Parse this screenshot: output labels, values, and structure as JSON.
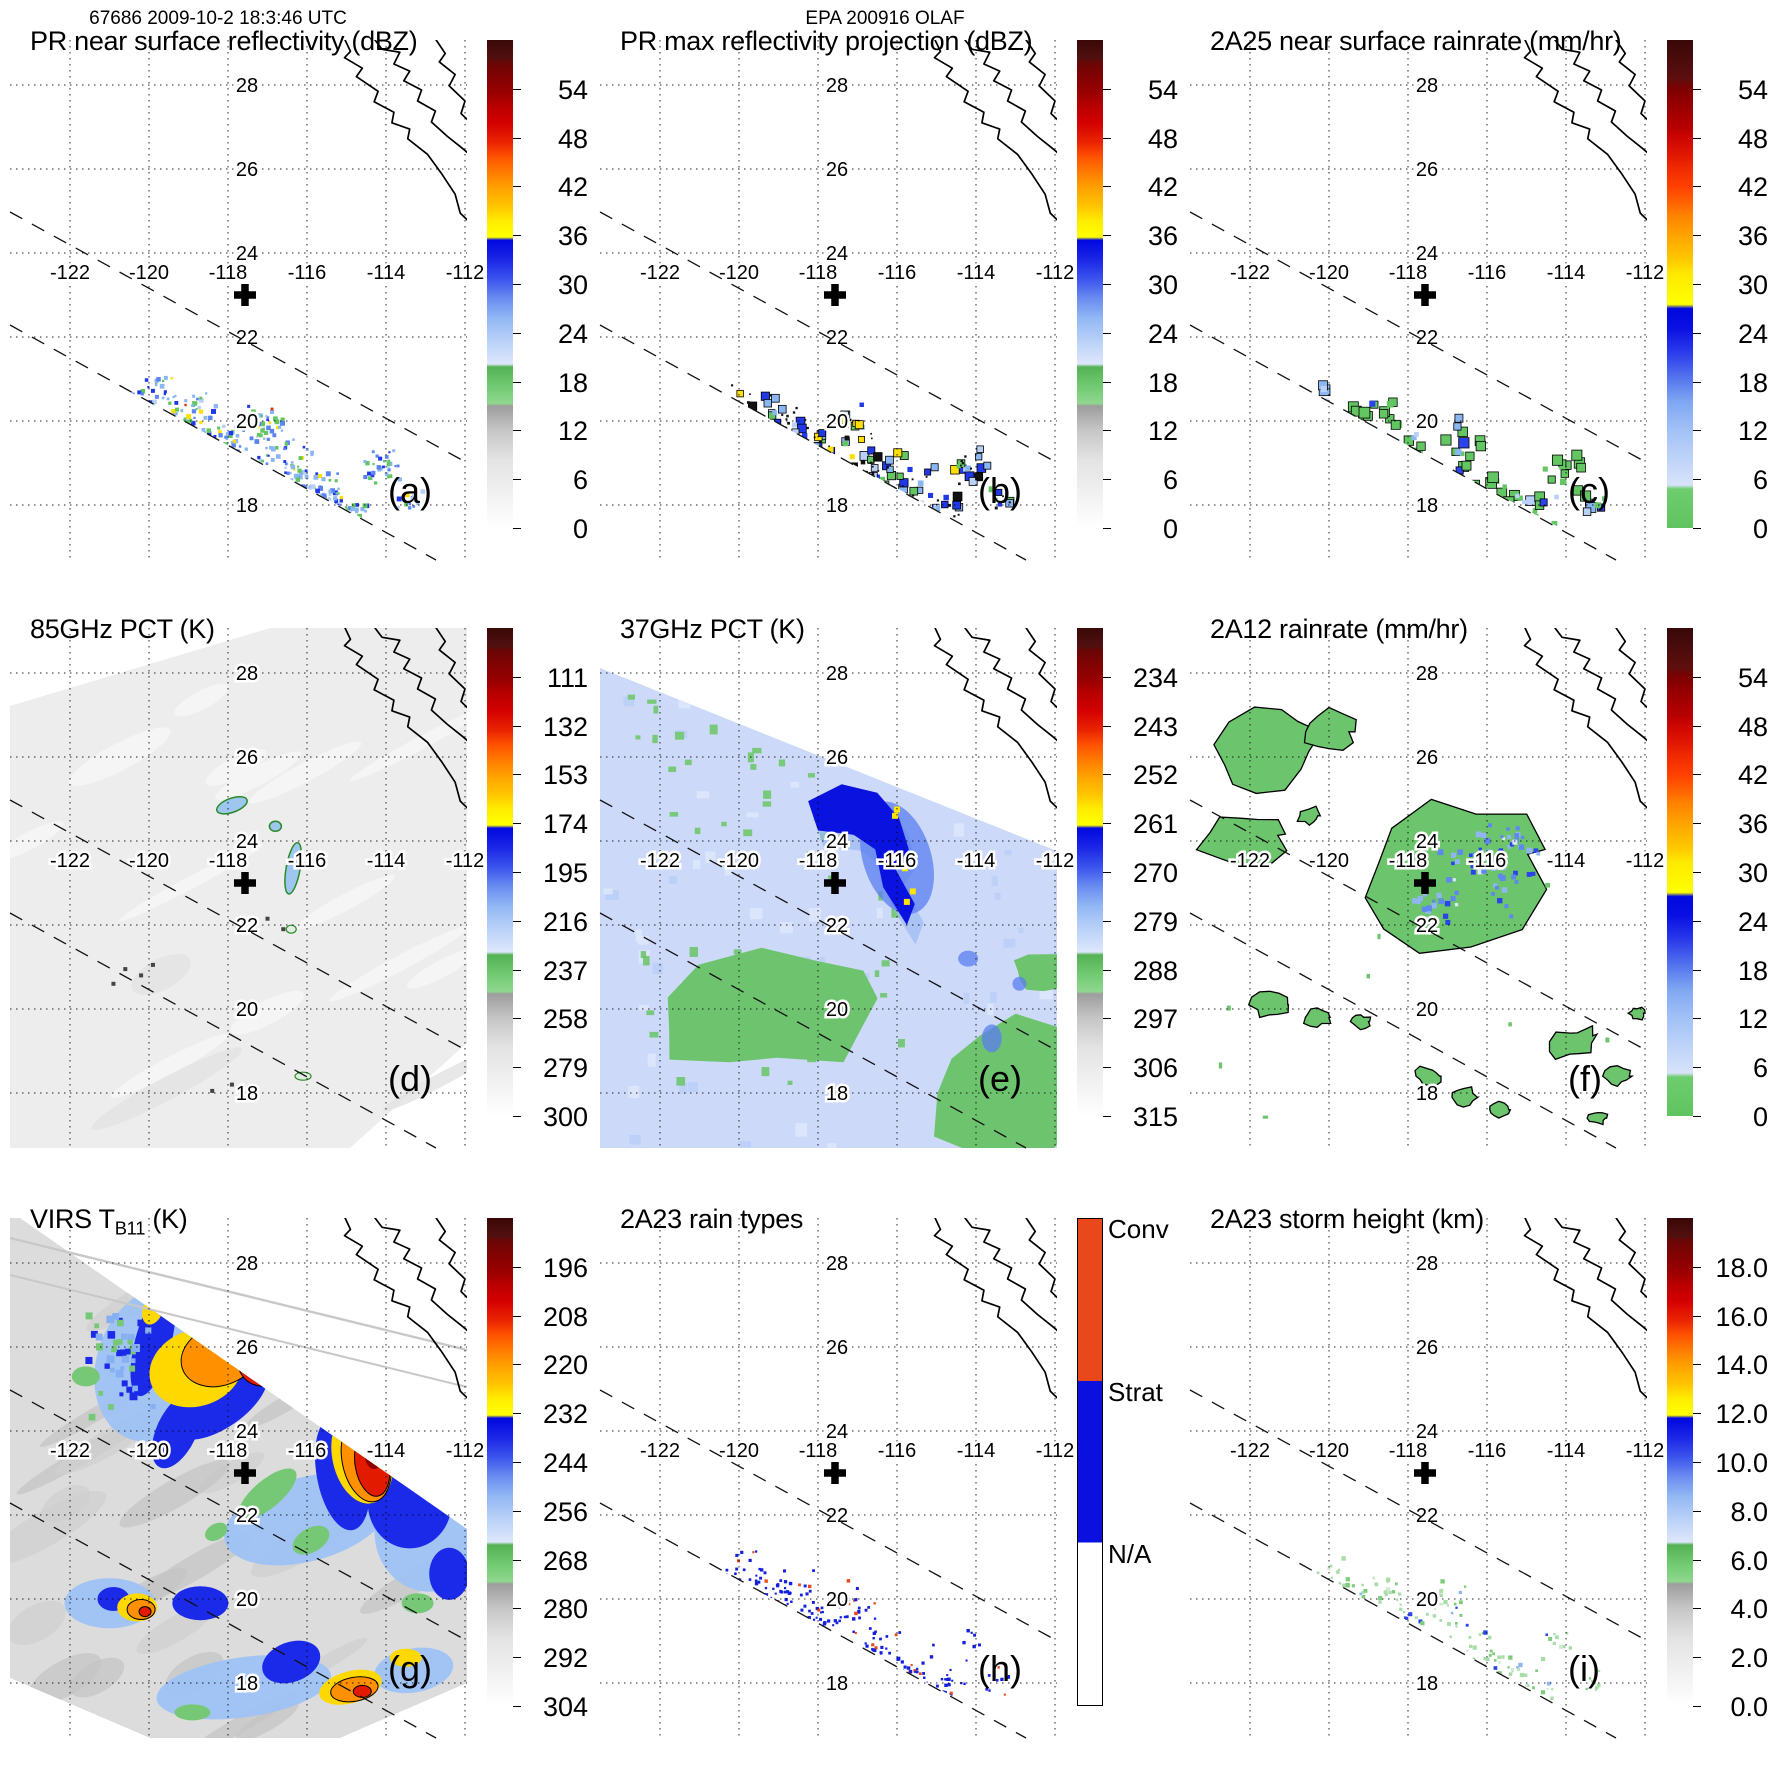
{
  "header": {
    "left": "67686 2009-10-2 18:3:46 UTC",
    "center": "EPA 200916 OLAF"
  },
  "geo": {
    "lon_ticks": [
      -122,
      -120,
      -118,
      -116,
      -114,
      -112
    ],
    "lon_labels": [
      "-122",
      "-120",
      "-118",
      "-116",
      "-114",
      "-112"
    ],
    "lat_ticks": [
      28,
      26,
      24,
      22,
      20,
      18
    ],
    "lat_labels": [
      "28",
      "26",
      "24",
      "22",
      "20",
      "18"
    ],
    "lon_range": [
      -123.5,
      -112.0
    ],
    "lat_range": [
      16.7,
      29.1
    ],
    "storm_marker": {
      "lon": -117.57,
      "lat": 23.0
    },
    "swath_edges_dashed": true,
    "coastline": "Baja California and mainland Mexico"
  },
  "colors": {
    "conv": "#e8481c",
    "strat": "#0a10dd",
    "na": "#ffffff",
    "standard_stops": [
      [
        0,
        "#ffffff"
      ],
      [
        7,
        "#f1f1f1"
      ],
      [
        14,
        "#e3e3e3"
      ],
      [
        20,
        "#c6c6c6"
      ],
      [
        25,
        "#9d9d9d"
      ],
      [
        25.5,
        "#8fd78f"
      ],
      [
        29,
        "#72ca72"
      ],
      [
        33,
        "#54b254"
      ],
      [
        33.6,
        "#dde7fb"
      ],
      [
        38,
        "#bcd3f8"
      ],
      [
        43,
        "#92b7f4"
      ],
      [
        47,
        "#6a8df1"
      ],
      [
        51,
        "#3b54ed"
      ],
      [
        55,
        "#1b26e6"
      ],
      [
        59,
        "#0008e0"
      ],
      [
        59.6,
        "#ffff00"
      ],
      [
        63,
        "#ffec00"
      ],
      [
        66,
        "#ffc400"
      ],
      [
        70,
        "#ff9e00"
      ],
      [
        73,
        "#ff7a00"
      ],
      [
        76,
        "#ff5300"
      ],
      [
        79,
        "#ea2400"
      ],
      [
        83,
        "#d40000"
      ],
      [
        87,
        "#b40000"
      ],
      [
        89,
        "#9a0000"
      ],
      [
        93,
        "#7e0303"
      ],
      [
        95.5,
        "#680606"
      ],
      [
        96.2,
        "#521010"
      ],
      [
        100,
        "#3a0808"
      ]
    ],
    "rain_stops": [
      [
        0,
        "#5fc45f"
      ],
      [
        8,
        "#6ecd6e"
      ],
      [
        8.8,
        "#d7e3fa"
      ],
      [
        14,
        "#c0d4f9"
      ],
      [
        20,
        "#a2c1f6"
      ],
      [
        26,
        "#7ea6f2"
      ],
      [
        31,
        "#5272ee"
      ],
      [
        36,
        "#2b3bea"
      ],
      [
        41,
        "#0a10e2"
      ],
      [
        45,
        "#0008e0"
      ],
      [
        45.8,
        "#ffff00"
      ],
      [
        52,
        "#ffe900"
      ],
      [
        55,
        "#ffc800"
      ],
      [
        60,
        "#ffa300"
      ],
      [
        64,
        "#ff8200"
      ],
      [
        67,
        "#ff6000"
      ],
      [
        70,
        "#ff4000"
      ],
      [
        74,
        "#ef2800"
      ],
      [
        76,
        "#e31a00"
      ],
      [
        80,
        "#cc0500"
      ],
      [
        82,
        "#b80000"
      ],
      [
        86,
        "#9c0000"
      ],
      [
        90,
        "#7e0000"
      ],
      [
        92,
        "#5e0e0e"
      ],
      [
        100,
        "#380808"
      ]
    ]
  },
  "chart_data": [
    {
      "label": "(a)",
      "title": "PR near surface reflectivity (dBZ)",
      "type": "heatmap",
      "units": "dBZ",
      "overlay": "pr_reflectivity",
      "colorbar": {
        "scale": "standard",
        "ticks": [
          "0",
          "6",
          "12",
          "18",
          "24",
          "30",
          "36",
          "42",
          "48",
          "54"
        ]
      },
      "description": "Scattered shallow convective rain cells inside the narrow PR swath southwest of Baja California, between the dashed swath edges, lat 17-21.5, lon -120..-113"
    },
    {
      "label": "(b)",
      "title": "PR max reflectivity projection (dBZ)",
      "type": "heatmap",
      "units": "dBZ",
      "overlay": "pr_max_reflectivity",
      "colorbar": {
        "scale": "standard",
        "ticks": [
          "0",
          "6",
          "12",
          "18",
          "24",
          "30",
          "36",
          "42",
          "48",
          "54"
        ]
      },
      "description": "Same cells as (a) shown as column-maximum reflectivity with black contours and a few yellow 36-42 dBZ cores"
    },
    {
      "label": "(c)",
      "title": "2A25 near surface rainrate (mm/hr)",
      "type": "heatmap",
      "units": "mm/hr",
      "overlay": "rainrate_2a25",
      "colorbar": {
        "scale": "rain",
        "ticks": [
          "0",
          "6",
          "12",
          "18",
          "24",
          "30",
          "36",
          "42",
          "48",
          "54"
        ]
      },
      "description": "Light (green, <6 mm/hr) rain areas with black outlines matching the PR cells"
    },
    {
      "label": "(d)",
      "title": "85GHz PCT (K)",
      "type": "heatmap",
      "units": "K",
      "overlay": "pct85",
      "colorbar": {
        "scale": "standard",
        "ticks": [
          "300",
          "279",
          "258",
          "237",
          "216",
          "195",
          "174",
          "153",
          "132",
          "111"
        ]
      },
      "description": "Wide TMI swath of warm (290-300 K, pale gray) brightness temperatures with a few small depressed-PCT features (~240-260 K) outlined near lat 23-25, lon -118..-116"
    },
    {
      "label": "(e)",
      "title": "37GHz PCT (K)",
      "type": "heatmap",
      "units": "K",
      "overlay": "pct37",
      "colorbar": {
        "scale": "standard",
        "ticks": [
          "315",
          "306",
          "297",
          "288",
          "279",
          "270",
          "261",
          "252",
          "243",
          "234"
        ]
      },
      "description": "Pale-blue ~280 K swath, green ~288 K low-emission ocean patches, and a dark-blue 265-270 K hook with yellow ~261 K flecks curling around the storm center"
    },
    {
      "label": "(f)",
      "title": "2A12 rainrate (mm/hr)",
      "type": "heatmap",
      "units": "mm/hr",
      "overlay": "rainrate_2a12",
      "colorbar": {
        "scale": "rain",
        "ticks": [
          "0",
          "6",
          "12",
          "18",
          "24",
          "30",
          "36",
          "42",
          "48",
          "54"
        ]
      },
      "description": "Broad green (<6 mm/hr) TMI rain areas with black outlines covering lat 17-27; blue 6-24 mm/hr speckles embedded in the central blob near the storm center"
    },
    {
      "label": "(g)",
      "title": "VIRS T_B11 (K)",
      "type": "heatmap",
      "units": "K",
      "overlay": "virs_tb11",
      "colorbar": {
        "scale": "standard",
        "ticks": [
          "304",
          "292",
          "280",
          "268",
          "256",
          "244",
          "232",
          "220",
          "208",
          "196"
        ]
      },
      "description": "VIRS 11-um image: warm gray ocean scene, cold convective canopies in blue/yellow/orange with red/dark-red (<210 K) overshooting tops; scene truncated along the swath edge in the upper right"
    },
    {
      "label": "(h)",
      "title": "2A23 rain types",
      "type": "heatmap",
      "units": "category",
      "overlay": "rain_types",
      "colorbar": {
        "scale": "raintype",
        "ticks": [
          "N/A",
          "Strat",
          "Conv"
        ]
      },
      "description": "Mostly stratiform (blue) pixels with scattered convective (red-orange) pixels inside the PR swath, densest near lat 18, lon -116"
    },
    {
      "label": "(i)",
      "title": "2A23 storm height (km)",
      "type": "heatmap",
      "units": "km",
      "overlay": "storm_height",
      "colorbar": {
        "scale": "standard",
        "ticks": [
          "0.0",
          "2.0",
          "4.0",
          "6.0",
          "8.0",
          "10.0",
          "12.0",
          "14.0",
          "16.0",
          "18.0"
        ]
      },
      "description": "Shallow storm heights, mostly 4-6 km pale green speckles with a few blue ~8-10 km points, same pattern as (a)"
    }
  ]
}
